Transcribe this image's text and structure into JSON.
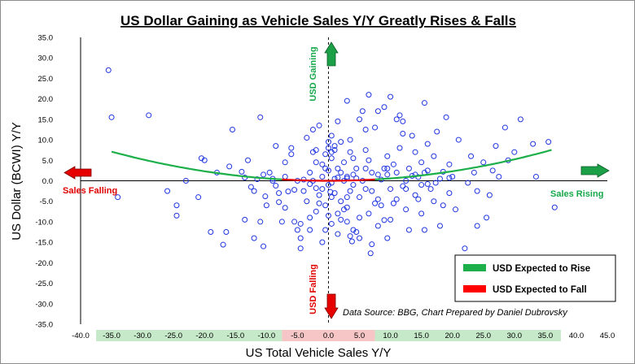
{
  "chart_data": {
    "type": "scatter",
    "title": "US Dollar Gaining as Vehicle Sales Y/Y Greatly Rises & Falls",
    "xlabel": "US Total Vehicle Sales Y/Y",
    "ylabel": "US Dollar (BCWI) Y/Y",
    "xlim": [
      -40,
      45
    ],
    "ylim": [
      -35,
      35
    ],
    "x_ticks": [
      -40,
      -35,
      -30,
      -25,
      -20,
      -15,
      -10,
      -5,
      0,
      5,
      10,
      15,
      20,
      25,
      30,
      35,
      40,
      45
    ],
    "y_ticks": [
      35,
      30,
      25,
      20,
      15,
      10,
      5,
      0,
      -5,
      -10,
      -15,
      -20,
      -25,
      -30,
      -35
    ],
    "x_bands": [
      {
        "from": -37.5,
        "to": -7.5,
        "color": "#c6e9c9"
      },
      {
        "from": -7.5,
        "to": 7.5,
        "color": "#f6c6c6"
      },
      {
        "from": 7.5,
        "to": 37.5,
        "color": "#c6e9c9"
      }
    ],
    "fit_curve": {
      "a": 0.0058,
      "xmin": -35,
      "xmax": 36
    },
    "fit_colors": {
      "rise": "#1db04a",
      "fall": "#e00000"
    },
    "points": [
      [
        -35.5,
        27
      ],
      [
        -35,
        15.5
      ],
      [
        -34,
        -4
      ],
      [
        -29,
        16
      ],
      [
        -26,
        -2.5
      ],
      [
        -24.5,
        -6
      ],
      [
        -24.5,
        -8.5
      ],
      [
        -23,
        0
      ],
      [
        -21,
        -4
      ],
      [
        -20.5,
        5.5
      ],
      [
        -20,
        5
      ],
      [
        -18,
        2
      ],
      [
        -16,
        3.5
      ],
      [
        -15.5,
        12.5
      ],
      [
        -11,
        15.5
      ],
      [
        -10.5,
        -16
      ],
      [
        -9.5,
        2
      ],
      [
        -9,
        0.5
      ],
      [
        -8.5,
        8.5
      ],
      [
        -8,
        -3
      ],
      [
        -7.5,
        -10
      ],
      [
        -7,
        4.5
      ],
      [
        -6,
        8
      ],
      [
        -6,
        6.5
      ],
      [
        -5.5,
        -10
      ],
      [
        -5,
        -12
      ],
      [
        -4.5,
        -14
      ],
      [
        -4.5,
        -16.5
      ],
      [
        -4,
        -2.5
      ],
      [
        -3.5,
        10.5
      ],
      [
        -3,
        -9
      ],
      [
        -3,
        -12
      ],
      [
        -2.5,
        12.5
      ],
      [
        -2.5,
        0
      ],
      [
        -2,
        4.5
      ],
      [
        -2,
        -7.5
      ],
      [
        -1.5,
        13.5
      ],
      [
        -1.5,
        -3.5
      ],
      [
        -1.5,
        -5.5
      ],
      [
        -1,
        1
      ],
      [
        -1,
        -15
      ],
      [
        -0.5,
        6.5
      ],
      [
        -0.5,
        -6
      ],
      [
        -0.5,
        -12
      ],
      [
        0,
        9.5
      ],
      [
        0,
        8
      ],
      [
        0,
        2.5
      ],
      [
        0,
        -1
      ],
      [
        0,
        -8.5
      ],
      [
        0.5,
        7
      ],
      [
        0.5,
        5.5
      ],
      [
        0.5,
        -4
      ],
      [
        0.5,
        -10.5
      ],
      [
        1,
        7.5
      ],
      [
        1,
        0.5
      ],
      [
        1,
        -3
      ],
      [
        1.5,
        3
      ],
      [
        1.5,
        -8
      ],
      [
        1.5,
        -13
      ],
      [
        2,
        -5
      ],
      [
        2.5,
        4.5
      ],
      [
        2.5,
        0
      ],
      [
        3,
        -6.5
      ],
      [
        3,
        -10
      ],
      [
        3.5,
        7
      ],
      [
        3.5,
        -2.5
      ],
      [
        4,
        5.5
      ],
      [
        4,
        1.5
      ],
      [
        4,
        -12
      ],
      [
        4.5,
        3
      ],
      [
        5,
        -4
      ],
      [
        5,
        -9
      ],
      [
        5,
        -14
      ],
      [
        5.5,
        0
      ],
      [
        6,
        7.5
      ],
      [
        6,
        -2
      ],
      [
        6.5,
        5
      ],
      [
        6.5,
        -8
      ],
      [
        7,
        2
      ],
      [
        7,
        -15.5
      ],
      [
        7.5,
        -5.5
      ],
      [
        8,
        1.5
      ],
      [
        8,
        -11
      ],
      [
        8.5,
        -6
      ],
      [
        9,
        3
      ],
      [
        9.5,
        6
      ],
      [
        9.5,
        1.5
      ],
      [
        10,
        -2
      ],
      [
        10,
        -9.5
      ],
      [
        10.5,
        4
      ],
      [
        10.5,
        -5.5
      ],
      [
        11,
        15
      ],
      [
        11,
        2
      ],
      [
        11.5,
        8
      ],
      [
        12,
        14.5
      ],
      [
        12,
        11.5
      ],
      [
        12.5,
        0
      ],
      [
        12.5,
        -7
      ],
      [
        13,
        3
      ],
      [
        13,
        -12
      ],
      [
        13.5,
        11
      ],
      [
        14,
        7
      ],
      [
        14,
        1.5
      ],
      [
        14.5,
        -4.5
      ],
      [
        15,
        4.5
      ],
      [
        15,
        -8
      ],
      [
        15.5,
        19
      ],
      [
        15.5,
        -12
      ],
      [
        16,
        9
      ],
      [
        16,
        2.5
      ],
      [
        16.5,
        -2
      ],
      [
        17,
        6
      ],
      [
        17,
        -5
      ],
      [
        17.5,
        12
      ],
      [
        18,
        0.5
      ],
      [
        18,
        -11
      ],
      [
        18.5,
        -6
      ],
      [
        19,
        15.5
      ],
      [
        19.5,
        4
      ],
      [
        19.5,
        -3
      ],
      [
        20,
        1
      ],
      [
        20.5,
        -7
      ],
      [
        21,
        10
      ],
      [
        22,
        -16.5
      ],
      [
        22.5,
        -0.5
      ],
      [
        23,
        6
      ],
      [
        23.5,
        2
      ],
      [
        24,
        -2.5
      ],
      [
        25,
        4.5
      ],
      [
        25.5,
        -9
      ],
      [
        27.5,
        1
      ],
      [
        -13,
        5
      ],
      [
        -12,
        -2.5
      ],
      [
        -9,
        0
      ],
      [
        -7,
        1
      ],
      [
        -3,
        2
      ],
      [
        -1,
        4
      ],
      [
        2,
        2
      ],
      [
        3,
        1
      ],
      [
        4,
        -1
      ],
      [
        6,
        3
      ],
      [
        7.5,
        13
      ],
      [
        9,
        18
      ],
      [
        10,
        20.5
      ],
      [
        11.5,
        16
      ],
      [
        5.5,
        17
      ],
      [
        5,
        15
      ],
      [
        8,
        17
      ],
      [
        6,
        12.5
      ],
      [
        -2,
        7.5
      ],
      [
        -2.5,
        7
      ],
      [
        0.5,
        11
      ],
      [
        1.5,
        14.5
      ],
      [
        3,
        19.5
      ],
      [
        6.5,
        21
      ],
      [
        -4.5,
        -10.5
      ],
      [
        -5,
        0
      ],
      [
        -3.5,
        -5
      ],
      [
        2,
        -9.5
      ],
      [
        2.5,
        -7
      ],
      [
        3,
        -4
      ],
      [
        3.5,
        -13.5
      ],
      [
        3.8,
        -14.8
      ],
      [
        6.8,
        -17.7
      ],
      [
        4.5,
        -12.5
      ],
      [
        9.5,
        -14
      ],
      [
        9,
        -9.6
      ],
      [
        8,
        -4.5
      ],
      [
        7,
        -2.5
      ],
      [
        8.5,
        0.3
      ],
      [
        9.5,
        3
      ],
      [
        11,
        -4.5
      ],
      [
        12,
        -1.3
      ],
      [
        12.5,
        -2
      ],
      [
        14,
        -3.5
      ],
      [
        15,
        -1
      ],
      [
        13.5,
        1.2
      ],
      [
        14.5,
        0.9
      ],
      [
        15.5,
        2
      ],
      [
        16,
        -0.8
      ],
      [
        17.3,
        -0.5
      ],
      [
        18.5,
        2.2
      ],
      [
        19.5,
        0.7
      ],
      [
        -14,
        2.2
      ],
      [
        -13.5,
        0.8
      ],
      [
        -12.5,
        -1.5
      ],
      [
        -11.5,
        0.4
      ],
      [
        -10.5,
        1.5
      ],
      [
        -10.2,
        -3.8
      ],
      [
        -8.5,
        -1.2
      ],
      [
        -6.5,
        -2.6
      ],
      [
        -5.5,
        -2.2
      ],
      [
        -4,
        0.3
      ],
      [
        -3,
        -0.8
      ],
      [
        0.5,
        -0.5
      ],
      [
        1.5,
        0.8
      ],
      [
        3,
        0.6
      ],
      [
        4.5,
        0.6
      ],
      [
        -8,
        -5.2
      ],
      [
        -11,
        -10
      ],
      [
        -12,
        -14
      ],
      [
        -13.5,
        -9.5
      ],
      [
        -16.5,
        -12.5
      ],
      [
        -17,
        -15.6
      ],
      [
        -19,
        -12.5
      ],
      [
        -10,
        -6
      ],
      [
        -7,
        -6.6
      ],
      [
        -2,
        -1.8
      ],
      [
        -1,
        -2
      ],
      [
        0.3,
        -2.7
      ],
      [
        -0.5,
        3
      ],
      [
        1,
        8.5
      ],
      [
        2,
        9.5
      ],
      [
        3.5,
        10
      ],
      [
        26,
        -3.5
      ],
      [
        28.5,
        13
      ],
      [
        27,
        8.5
      ],
      [
        30,
        7
      ],
      [
        33,
        9
      ],
      [
        36.5,
        -6.5
      ],
      [
        33.5,
        1
      ],
      [
        31,
        15
      ],
      [
        35.5,
        9.5
      ],
      [
        29,
        5
      ],
      [
        24,
        -11
      ],
      [
        26.5,
        2.5
      ]
    ],
    "annotations": {
      "usd_gaining": "USD Gaining",
      "usd_falling": "USD Falling",
      "sales_falling": "Sales Falling",
      "sales_rising": "Sales Rising",
      "source": "Data Source: BBG, Chart Prepared by Daniel Dubrovsky"
    },
    "legend": [
      {
        "label": "USD Expected to Rise",
        "color": "#1db04a"
      },
      {
        "label": "USD Expected to Fall",
        "color": "#ff0000"
      }
    ],
    "legend_position": "bottom-right",
    "colors": {
      "marker": "#1f35e0",
      "arrow_red": "#e60000",
      "arrow_green": "#1ba048",
      "axis": "#000000"
    }
  }
}
